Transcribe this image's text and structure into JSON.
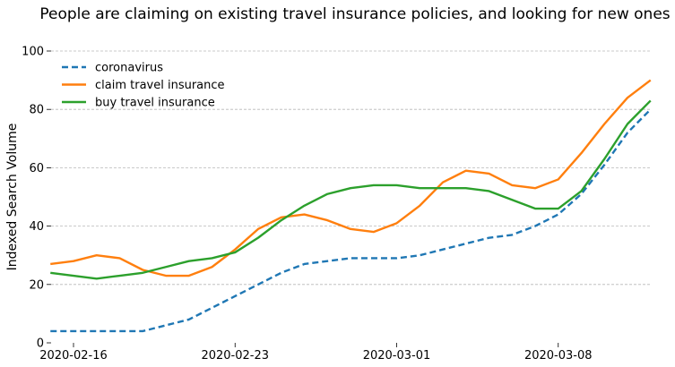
{
  "chart_data": {
    "type": "line",
    "title": "People are claiming on existing travel insurance policies, and looking for new ones",
    "xlabel": "",
    "ylabel": "Indexed Search Volume",
    "ylim": [
      0,
      100
    ],
    "yticks": [
      0,
      20,
      40,
      60,
      80,
      100
    ],
    "start_date": "2020-02-15",
    "x_tick_labels": [
      "2020-02-16",
      "2020-02-23",
      "2020-03-01",
      "2020-03-08"
    ],
    "x_tick_index": [
      1,
      8,
      15,
      22
    ],
    "grid": true,
    "legend": "top-left",
    "series": [
      {
        "name": "coronavirus",
        "color": "#1f77b4",
        "style": "dashed",
        "values": [
          4,
          4,
          4,
          4,
          4,
          6,
          8,
          12,
          16,
          20,
          24,
          27,
          28,
          29,
          29,
          29,
          30,
          32,
          34,
          36,
          37,
          40,
          44,
          51,
          61,
          72,
          80
        ]
      },
      {
        "name": "claim travel insurance",
        "color": "#ff7f0e",
        "style": "solid",
        "values": [
          27,
          28,
          30,
          29,
          25,
          23,
          23,
          26,
          32,
          39,
          43,
          44,
          42,
          39,
          38,
          41,
          47,
          55,
          59,
          58,
          54,
          53,
          56,
          65,
          75,
          84,
          90
        ]
      },
      {
        "name": "buy travel insurance",
        "color": "#2ca02c",
        "style": "solid",
        "values": [
          24,
          23,
          22,
          23,
          24,
          26,
          28,
          29,
          31,
          36,
          42,
          47,
          51,
          53,
          54,
          54,
          53,
          53,
          53,
          52,
          49,
          46,
          46,
          52,
          63,
          75,
          83
        ]
      }
    ]
  }
}
